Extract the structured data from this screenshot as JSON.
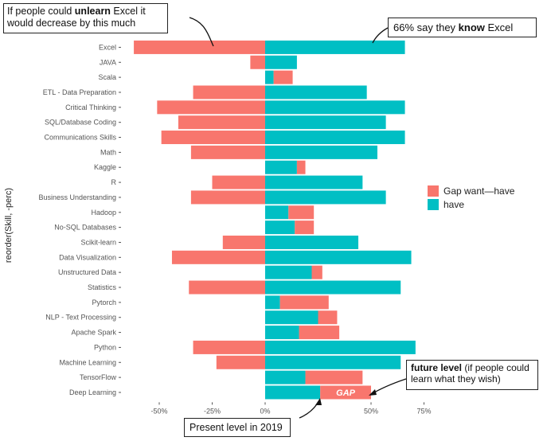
{
  "chart_data": {
    "type": "bar",
    "orientation": "horizontal",
    "ylabel": "reorder(Skill, -perc)",
    "xlabel": "",
    "xlim": [
      -60,
      75
    ],
    "x_ticks": [
      -50,
      -25,
      0,
      50,
      75
    ],
    "x_tick_labels": [
      "-50%",
      "-25%",
      "0%",
      "50%",
      "75%"
    ],
    "grid": false,
    "legend_position": "right",
    "colors": {
      "gap": "#F8766D",
      "have": "#00BFC4"
    },
    "series": [
      {
        "name": "Gap want—have",
        "key": "gap"
      },
      {
        "name": "have",
        "key": "have"
      }
    ],
    "categories": [
      {
        "label": "Excel",
        "have": 66,
        "gap": -62
      },
      {
        "label": "JAVA",
        "have": 15,
        "gap": -7
      },
      {
        "label": "Scala",
        "have": 4,
        "gap": 9
      },
      {
        "label": "ETL - Data Preparation",
        "have": 48,
        "gap": -34
      },
      {
        "label": "Critical Thinking",
        "have": 66,
        "gap": -51
      },
      {
        "label": "SQL/Database Coding",
        "have": 57,
        "gap": -41
      },
      {
        "label": "Communications Skills",
        "have": 66,
        "gap": -49
      },
      {
        "label": "Math",
        "have": 53,
        "gap": -35
      },
      {
        "label": "Kaggle",
        "have": 15,
        "gap": 4
      },
      {
        "label": "R",
        "have": 46,
        "gap": -25
      },
      {
        "label": "Business Understanding",
        "have": 57,
        "gap": -35
      },
      {
        "label": "Hadoop",
        "have": 11,
        "gap": 12
      },
      {
        "label": "No-SQL Databases",
        "have": 14,
        "gap": 9
      },
      {
        "label": "Scikit-learn",
        "have": 44,
        "gap": -20
      },
      {
        "label": "Data Visualization",
        "have": 69,
        "gap": -44
      },
      {
        "label": "Unstructured Data",
        "have": 22,
        "gap": 5
      },
      {
        "label": "Statistics",
        "have": 64,
        "gap": -36
      },
      {
        "label": "Pytorch",
        "have": 7,
        "gap": 23
      },
      {
        "label": "NLP - Text Processing",
        "have": 25,
        "gap": 9
      },
      {
        "label": "Apache Spark",
        "have": 16,
        "gap": 19
      },
      {
        "label": "Python",
        "have": 71,
        "gap": -34
      },
      {
        "label": "Machine Learning",
        "have": 64,
        "gap": -23
      },
      {
        "label": "TensorFlow",
        "have": 19,
        "gap": 27
      },
      {
        "label": "Deep Learning",
        "have": 26,
        "gap": 24
      }
    ],
    "bar_annotation": {
      "category": "Deep Learning",
      "text": "GAP"
    }
  },
  "annotations": {
    "unlearn": {
      "pre": "If people could ",
      "bold": "unlearn",
      "post": " Excel it would decrease by this much"
    },
    "know": {
      "pre": "66% say they ",
      "bold": "know",
      "post": " Excel"
    },
    "future": {
      "bold": "future level",
      "post": " (if people could learn what they wish)"
    },
    "present": {
      "text": "Present level in 2019"
    }
  }
}
